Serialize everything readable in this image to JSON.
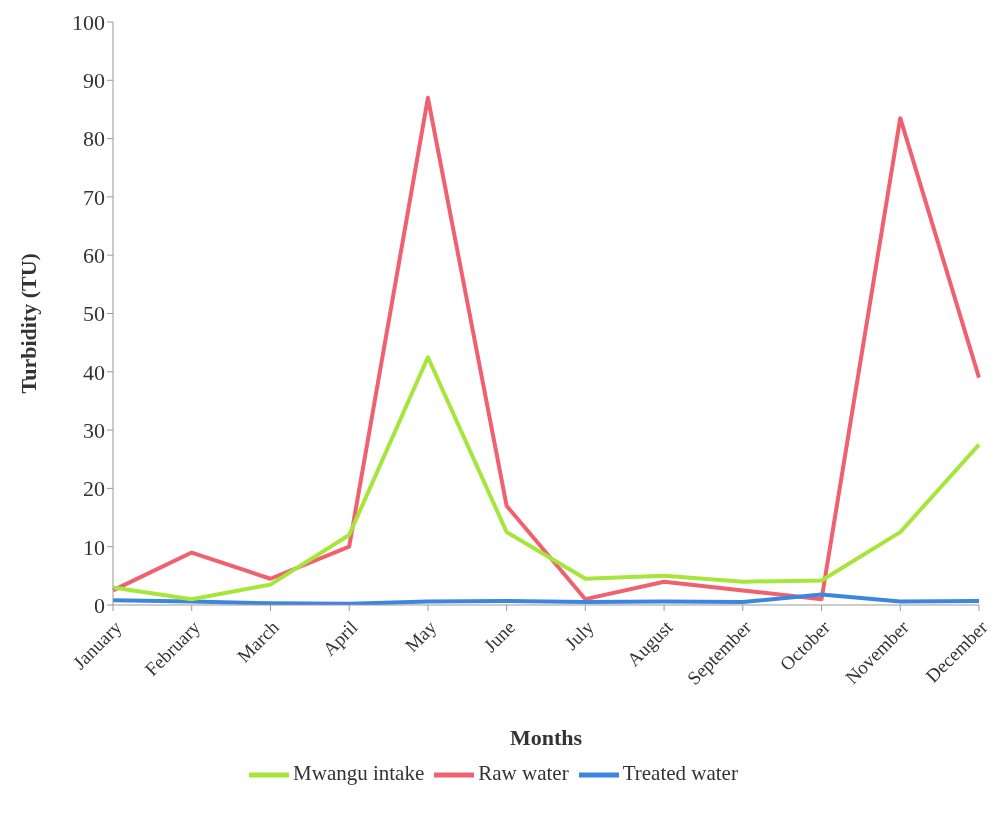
{
  "chart_data": {
    "type": "line",
    "xlabel": "Months",
    "ylabel": "Turbidity (TU)",
    "categories": [
      "January",
      "February",
      "March",
      "April",
      "May",
      "June",
      "July",
      "August",
      "September",
      "October",
      "November",
      "December"
    ],
    "series": [
      {
        "name": "Raw water",
        "color": "#f0606e",
        "values": [
          2.5,
          9,
          4.5,
          10,
          87,
          17,
          1,
          4,
          2.5,
          1,
          83.5,
          39
        ]
      },
      {
        "name": "Treated water",
        "color": "#3d86e0",
        "values": [
          0.8,
          0.6,
          0.3,
          0.2,
          0.6,
          0.7,
          0.5,
          0.6,
          0.5,
          1.8,
          0.6,
          0.7
        ]
      },
      {
        "name": "Mwangu intake",
        "color": "#a6e63a",
        "values": [
          3,
          1,
          3.5,
          12,
          42.5,
          12.5,
          4.5,
          5,
          4,
          4.2,
          12.5,
          27.5
        ]
      }
    ],
    "ylim": [
      0,
      100
    ],
    "yticks": [
      0,
      10,
      20,
      30,
      40,
      50,
      60,
      70,
      80,
      90,
      100
    ],
    "grid": false,
    "legend": "bottom",
    "marker": "none",
    "line_style": "solid"
  }
}
